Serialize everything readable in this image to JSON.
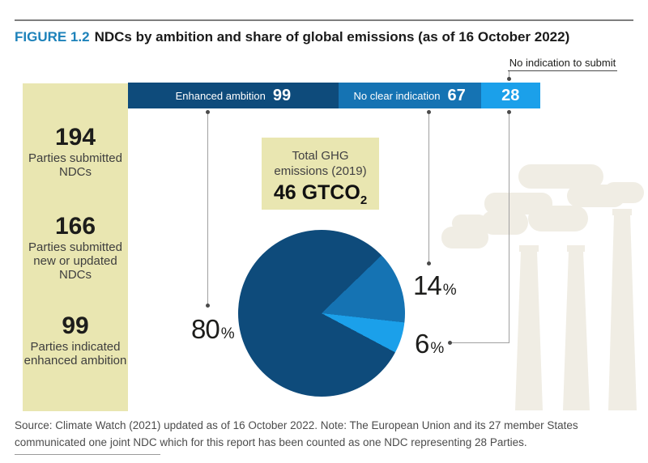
{
  "figure": {
    "label": "FIGURE 1.2",
    "title": "NDCs by ambition and share of global emissions (as of 16 October 2022)"
  },
  "annotation": {
    "no_indication_to_submit": "No indication to submit"
  },
  "bar": {
    "segments": [
      {
        "label": "Enhanced ambition",
        "value": "99"
      },
      {
        "label": "No clear indication",
        "value": "67"
      },
      {
        "label": "",
        "value": "28"
      }
    ]
  },
  "stats": [
    {
      "value": "194",
      "label": "Parties submitted NDCs"
    },
    {
      "value": "166",
      "label": "Parties submitted new or updated NDCs"
    },
    {
      "value": "99",
      "label": "Parties indicated enhanced ambition"
    }
  ],
  "ghg_box": {
    "line1": "Total GHG",
    "line2": "emissions (2019)",
    "value": "46 GTCO",
    "value_sub": "2"
  },
  "pie_callouts": [
    {
      "number": "80",
      "unit": "%"
    },
    {
      "number": "14",
      "unit": "%"
    },
    {
      "number": "6",
      "unit": "%"
    }
  ],
  "source": {
    "line1": "Source: Climate Watch (2021) updated as of 16 October 2022. Note: The European Union and its 27 member States",
    "line2": "communicated one joint NDC which for this report has been counted as one NDC representing 28 Parties."
  },
  "colors": {
    "enhanced_ambition": "#0e4b7b",
    "no_clear_indication": "#1573b3",
    "no_indication_to_submit": "#1ba0ea",
    "figure_label_blue": "#1d82ba",
    "panel_yellow": "#e9e6b1",
    "smoke_gray": "#f0ede4"
  },
  "chart_data": [
    {
      "type": "bar",
      "title": "NDCs by ambition (number of Parties, as of 16 October 2022)",
      "orientation": "horizontal",
      "stacked": true,
      "categories": [
        "Enhanced ambition",
        "No clear indication",
        "No indication to submit"
      ],
      "values": [
        99,
        67,
        28
      ],
      "total": 194,
      "colors": [
        "#0e4b7b",
        "#1573b3",
        "#1ba0ea"
      ],
      "legend_position": "inside-bar"
    },
    {
      "type": "pie",
      "title": "Share of global GHG emissions (2019): total 46 GtCO2",
      "labels": [
        "Enhanced ambition",
        "No clear indication",
        "No indication to submit"
      ],
      "values_percent": [
        80,
        14,
        6
      ],
      "colors": [
        "#0e4b7b",
        "#1573b3",
        "#1ba0ea"
      ],
      "start_angle_deg": 46,
      "order_clockwise_from_start": [
        "No clear indication",
        "No indication to submit",
        "Enhanced ambition"
      ]
    }
  ]
}
